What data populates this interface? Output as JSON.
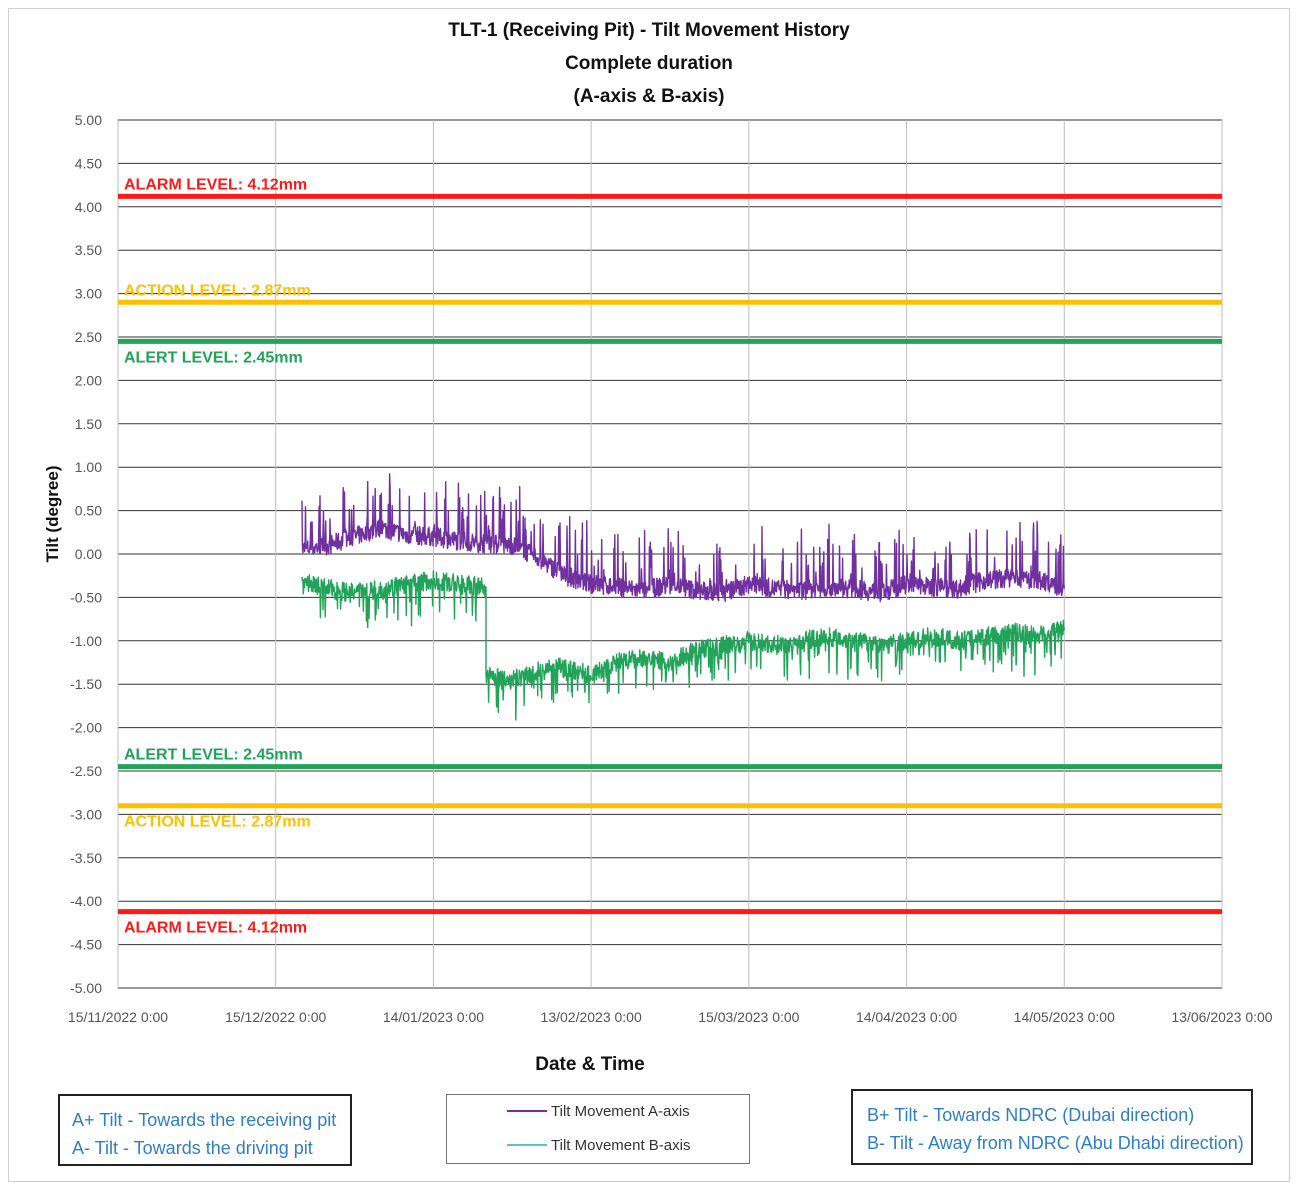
{
  "chart_data": {
    "type": "line",
    "title": [
      "TLT-1 (Receiving Pit) - Tilt Movement History",
      "Complete duration",
      "(A-axis & B-axis)"
    ],
    "xlabel": "Date & Time",
    "ylabel": "Tilt (degree)",
    "ylim": [
      -5.0,
      5.0
    ],
    "yticks": [
      5.0,
      4.5,
      4.0,
      3.5,
      3.0,
      2.5,
      2.0,
      1.5,
      1.0,
      0.5,
      0.0,
      -0.5,
      -1.0,
      -1.5,
      -2.0,
      -2.5,
      -3.0,
      -3.5,
      -4.0,
      -4.5,
      -5.0
    ],
    "ytick_labels": [
      "5.00",
      "4.50",
      "4.00",
      "3.50",
      "3.00",
      "2.50",
      "2.00",
      "1.50",
      "1.00",
      "0.50",
      "0.00",
      "-0.50",
      "-1.00",
      "-1.50",
      "-2.00",
      "-2.50",
      "-3.00",
      "-3.50",
      "-4.00",
      "-4.50",
      "-5.00"
    ],
    "xlim": [
      "15/11/2022 0:00",
      "13/06/2023 0:00"
    ],
    "xticks": [
      "15/11/2022 0:00",
      "15/12/2022 0:00",
      "14/01/2023 0:00",
      "13/02/2023 0:00",
      "15/03/2023 0:00",
      "14/04/2023 0:00",
      "14/05/2023 0:00",
      "13/06/2023 0:00"
    ],
    "grid": true,
    "thresholds": [
      {
        "label": "ALARM LEVEL: 4.12mm",
        "value": 4.12,
        "color": "#ff1a1a"
      },
      {
        "label": "ACTION LEVEL: 2.87mm",
        "value": 2.9,
        "color": "#ffc000"
      },
      {
        "label": "ALERT LEVEL: 2.45mm",
        "value": 2.45,
        "color": "#21a35a"
      },
      {
        "label": "ALERT LEVEL: 2.45mm",
        "value": -2.45,
        "color": "#21a35a"
      },
      {
        "label": "ACTION LEVEL: 2.87mm",
        "value": -2.9,
        "color": "#ffc000"
      },
      {
        "label": "ALARM LEVEL: 4.12mm",
        "value": -4.12,
        "color": "#ff1a1a"
      }
    ],
    "series": [
      {
        "name": "Tilt Movement A-axis",
        "color": "#7030a0",
        "x": [
          "20/12/2022",
          "25/12/2022",
          "30/12/2022",
          "04/01/2023",
          "09/01/2023",
          "14/01/2023",
          "19/01/2023",
          "24/01/2023",
          "29/01/2023",
          "03/02/2023",
          "08/02/2023",
          "13/02/2023",
          "18/02/2023",
          "23/02/2023",
          "28/02/2023",
          "05/03/2023",
          "10/03/2023",
          "15/03/2023",
          "20/03/2023",
          "25/03/2023",
          "30/03/2023",
          "04/04/2023",
          "09/04/2023",
          "14/04/2023",
          "19/04/2023",
          "24/04/2023",
          "29/04/2023",
          "04/05/2023",
          "09/05/2023",
          "14/05/2023"
        ],
        "y": [
          0.05,
          0.1,
          0.2,
          0.3,
          0.22,
          0.2,
          0.15,
          0.12,
          0.1,
          -0.05,
          -0.25,
          -0.35,
          -0.38,
          -0.42,
          -0.35,
          -0.42,
          -0.45,
          -0.35,
          -0.4,
          -0.42,
          -0.38,
          -0.4,
          -0.45,
          -0.35,
          -0.38,
          -0.4,
          -0.3,
          -0.28,
          -0.3,
          -0.4
        ]
      },
      {
        "name": "Tilt Movement B-axis",
        "color": "#21a35a",
        "x": [
          "20/12/2022",
          "25/12/2022",
          "30/12/2022",
          "04/01/2023",
          "09/01/2023",
          "14/01/2023",
          "19/01/2023",
          "24/01/2023",
          "24/01/2023",
          "29/01/2023",
          "03/02/2023",
          "08/02/2023",
          "13/02/2023",
          "18/02/2023",
          "23/02/2023",
          "28/02/2023",
          "05/03/2023",
          "10/03/2023",
          "15/03/2023",
          "20/03/2023",
          "25/03/2023",
          "30/03/2023",
          "04/04/2023",
          "09/04/2023",
          "14/04/2023",
          "19/04/2023",
          "24/04/2023",
          "29/04/2023",
          "04/05/2023",
          "09/05/2023",
          "14/05/2023"
        ],
        "y": [
          -0.3,
          -0.4,
          -0.45,
          -0.4,
          -0.35,
          -0.3,
          -0.35,
          -0.38,
          -1.4,
          -1.45,
          -1.35,
          -1.3,
          -1.4,
          -1.25,
          -1.2,
          -1.25,
          -1.1,
          -1.05,
          -1.0,
          -1.05,
          -1.0,
          -0.95,
          -1.0,
          -1.05,
          -1.0,
          -0.95,
          -1.0,
          -0.95,
          -0.9,
          -0.95,
          -0.85
        ]
      }
    ],
    "legend": {
      "placement": "bottom-center",
      "entries": [
        "Tilt Movement A-axis",
        "Tilt Movement B-axis"
      ]
    }
  },
  "notes": {
    "a_axis": [
      "A+ Tilt - Towards the receiving pit",
      "A- Tilt - Towards the driving pit"
    ],
    "b_axis": [
      "B+ Tilt - Towards NDRC (Dubai direction)",
      "B- Tilt - Away from NDRC (Abu Dhabi direction)"
    ]
  }
}
